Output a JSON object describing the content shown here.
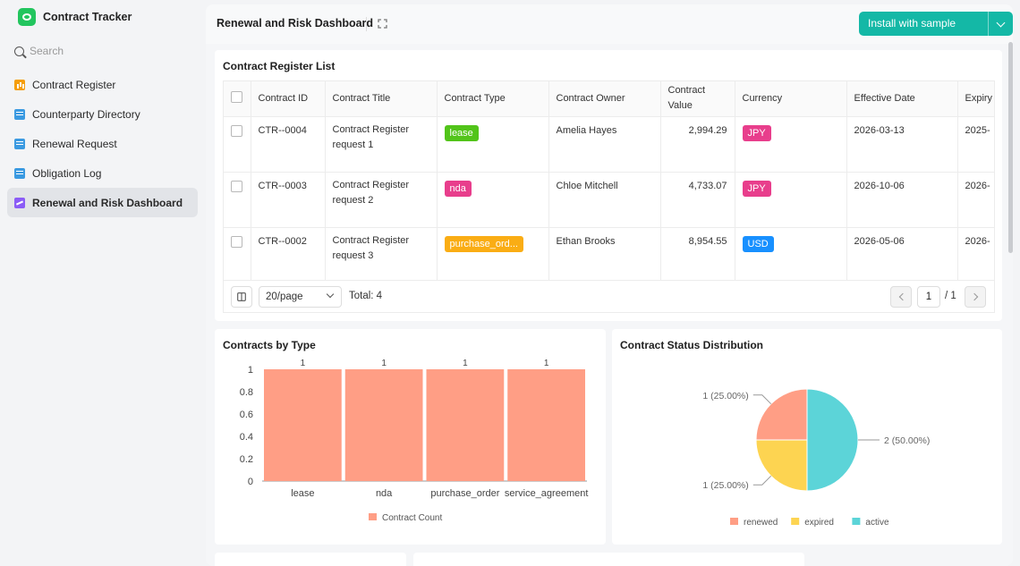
{
  "app": {
    "name": "Contract Tracker"
  },
  "sidebar": {
    "search_placeholder": "Search",
    "items": [
      {
        "label": "Contract Register",
        "icon": "bar-chart-icon",
        "color": "#f59e0b"
      },
      {
        "label": "Counterparty Directory",
        "icon": "table-icon",
        "color": "#3b9ae1"
      },
      {
        "label": "Renewal Request",
        "icon": "table-icon",
        "color": "#3b9ae1"
      },
      {
        "label": "Obligation Log",
        "icon": "table-icon",
        "color": "#3b9ae1"
      },
      {
        "label": "Renewal and Risk Dashboard",
        "icon": "dashboard-icon",
        "color": "#8b5cf6",
        "active": true
      }
    ]
  },
  "header": {
    "title": "Renewal and Risk Dashboard",
    "install_label": "Install with sample data",
    "accent": "#14b8a6"
  },
  "register": {
    "title": "Contract Register List",
    "columns": [
      "Contract ID",
      "Contract Title",
      "Contract Type",
      "Contract Owner",
      "Contract Value",
      "Currency",
      "Effective Date",
      "Expiry"
    ],
    "rows": [
      {
        "id": "CTR--0004",
        "title": "Contract Register request 1",
        "type": "lease",
        "type_color": "#52c41a",
        "owner": "Amelia Hayes",
        "value": "2,994.29",
        "currency": "JPY",
        "currency_color": "#e83e8c",
        "effective": "2026-03-13",
        "expiry": "2025-"
      },
      {
        "id": "CTR--0003",
        "title": "Contract Register request 2",
        "type": "nda",
        "type_color": "#e83e8c",
        "owner": "Chloe Mitchell",
        "value": "4,733.07",
        "currency": "JPY",
        "currency_color": "#e83e8c",
        "effective": "2026-10-06",
        "expiry": "2026-"
      },
      {
        "id": "CTR--0002",
        "title": "Contract Register request 3",
        "type": "purchase_ord...",
        "type_color": "#faad14",
        "owner": "Ethan Brooks",
        "value": "8,954.55",
        "currency": "USD",
        "currency_color": "#1890ff",
        "effective": "2026-05-06",
        "expiry": "2026-"
      }
    ],
    "pager": {
      "page_size": "20/page",
      "total": "Total: 4",
      "page": "1",
      "of": "/ 1"
    }
  },
  "charts": {
    "by_type_title": "Contracts by Type",
    "status_title": "Contract Status Distribution"
  },
  "chart_data": [
    {
      "type": "bar",
      "title": "Contracts by Type",
      "categories": [
        "lease",
        "nda",
        "purchase_order",
        "service_agreement"
      ],
      "series": [
        {
          "name": "Contract Count",
          "values": [
            1,
            1,
            1,
            1
          ],
          "color": "#ff9e85"
        }
      ],
      "ylim": [
        0,
        1
      ],
      "yticks": [
        "1",
        "0.8",
        "0.6",
        "0.4",
        "0.2",
        "0"
      ],
      "legend": "bottom"
    },
    {
      "type": "pie",
      "title": "Contract Status Distribution",
      "slices": [
        {
          "name": "renewed",
          "value": 1,
          "label": "1 (25.00%)",
          "color": "#ff9e85"
        },
        {
          "name": "expired",
          "value": 1,
          "label": "1 (25.00%)",
          "color": "#fdd451"
        },
        {
          "name": "active",
          "value": 2,
          "label": "2 (50.00%)",
          "color": "#5cd4d8"
        }
      ],
      "legend": "bottom"
    }
  ]
}
